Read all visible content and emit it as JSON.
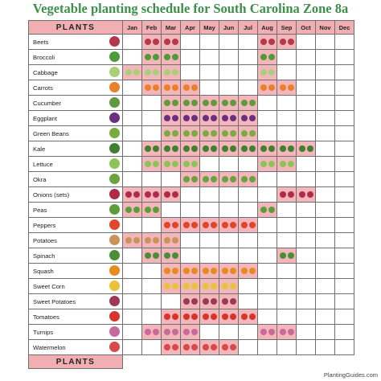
{
  "title": "Vegetable planting schedule for South Carolina Zone 8a",
  "header_label": "PLANTS",
  "footer_label": "PLANTS",
  "footer_site": "PlantingGuides.com",
  "months": [
    "Jan",
    "Feb",
    "Mar",
    "Apr",
    "May",
    "Jun",
    "Jul",
    "Aug",
    "Sep",
    "Oct",
    "Nov",
    "Dec"
  ],
  "plants": [
    {
      "name": "Beets",
      "icon": "beet-icon",
      "color": "#b23a4a",
      "months": [
        2,
        3,
        8,
        9
      ]
    },
    {
      "name": "Broccoli",
      "icon": "broccoli-icon",
      "color": "#4f9a3a",
      "months": [
        2,
        3,
        8
      ]
    },
    {
      "name": "Cabbage",
      "icon": "cabbage-icon",
      "color": "#a9cf7a",
      "months": [
        1,
        2,
        3,
        8
      ]
    },
    {
      "name": "Carrots",
      "icon": "carrot-icon",
      "color": "#e9812a",
      "months": [
        2,
        3,
        4,
        8,
        9
      ]
    },
    {
      "name": "Cucumber",
      "icon": "cucumber-icon",
      "color": "#5f9a3c",
      "months": [
        3,
        4,
        5,
        6,
        7
      ]
    },
    {
      "name": "Eggplant",
      "icon": "eggplant-icon",
      "color": "#6b2f7f",
      "months": [
        3,
        4,
        5,
        6,
        7
      ]
    },
    {
      "name": "Green Beans",
      "icon": "green-bean-icon",
      "color": "#7aab3f",
      "months": [
        3,
        4,
        5,
        6,
        7
      ]
    },
    {
      "name": "Kale",
      "icon": "kale-icon",
      "color": "#3f7f2f",
      "months": [
        2,
        3,
        4,
        5,
        6,
        7,
        8,
        9,
        10
      ]
    },
    {
      "name": "Lettuce",
      "icon": "lettuce-icon",
      "color": "#8cc45a",
      "months": [
        2,
        3,
        4,
        8,
        9
      ]
    },
    {
      "name": "Okra",
      "icon": "okra-icon",
      "color": "#6aa33d",
      "months": [
        4,
        5,
        6,
        7
      ]
    },
    {
      "name": "Onions (sets)",
      "icon": "onion-icon",
      "color": "#b02a4a",
      "months": [
        1,
        2,
        3,
        9,
        10
      ]
    },
    {
      "name": "Peas",
      "icon": "pea-icon",
      "color": "#5e9e3a",
      "months": [
        1,
        2,
        8
      ]
    },
    {
      "name": "Peppers",
      "icon": "pepper-icon",
      "color": "#e0472a",
      "months": [
        3,
        4,
        5,
        6,
        7
      ]
    },
    {
      "name": "Potatoes",
      "icon": "potato-icon",
      "color": "#c9935a",
      "months": [
        1,
        2,
        3
      ]
    },
    {
      "name": "Spinach",
      "icon": "spinach-icon",
      "color": "#4a8f38",
      "months": [
        2,
        3,
        9
      ]
    },
    {
      "name": "Squash",
      "icon": "squash-icon",
      "color": "#e98a1f",
      "months": [
        3,
        4,
        5,
        6,
        7
      ]
    },
    {
      "name": "Sweet Corn",
      "icon": "corn-icon",
      "color": "#e8c33a",
      "months": [
        3,
        4,
        5,
        6
      ]
    },
    {
      "name": "Sweet Potatoes",
      "icon": "sweet-potato-icon",
      "color": "#9a3a55",
      "months": [
        4,
        5,
        6
      ]
    },
    {
      "name": "Tomatoes",
      "icon": "tomato-icon",
      "color": "#d9342b",
      "months": [
        3,
        4,
        5,
        6,
        7
      ]
    },
    {
      "name": "Turnips",
      "icon": "turnip-icon",
      "color": "#c76a9a",
      "months": [
        2,
        3,
        4,
        8,
        9
      ]
    },
    {
      "name": "Watermelon",
      "icon": "watermelon-icon",
      "color": "#d9484a",
      "months": [
        3,
        4,
        5,
        6
      ]
    }
  ]
}
